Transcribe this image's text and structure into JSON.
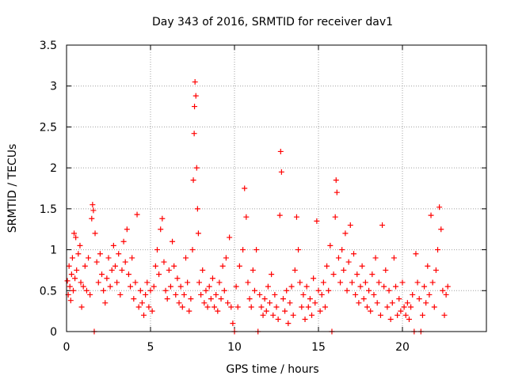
{
  "chart_data": {
    "type": "scatter",
    "title": "Day 343 of 2016, SRMTID for receiver dav1",
    "xlabel": "GPS time / hours",
    "ylabel": "SRMTID / TECUs",
    "xlim": [
      0,
      25
    ],
    "ylim": [
      0,
      3.5
    ],
    "xticks": [
      0,
      5,
      10,
      15,
      20
    ],
    "yticks": [
      0,
      0.5,
      1,
      1.5,
      2,
      2.5,
      3,
      3.5
    ],
    "ytick_labels": [
      "0",
      "0.5",
      "1",
      "1.5",
      "2",
      "2.5",
      "3",
      "3.5"
    ],
    "xtick_labels": [
      "0",
      "5",
      "10",
      "15",
      "20"
    ],
    "grid": true,
    "marker": "plus",
    "series": [
      {
        "name": "SRMTID",
        "color": "#ff0000",
        "points": [
          [
            0.05,
            0.62
          ],
          [
            0.1,
            0.45
          ],
          [
            0.15,
            0.8
          ],
          [
            0.2,
            0.55
          ],
          [
            0.25,
            0.38
          ],
          [
            0.3,
            0.7
          ],
          [
            0.35,
            0.9
          ],
          [
            0.4,
            0.5
          ],
          [
            0.45,
            1.2
          ],
          [
            0.5,
            0.65
          ],
          [
            0.55,
            1.15
          ],
          [
            0.6,
            0.75
          ],
          [
            0.7,
            0.95
          ],
          [
            0.8,
            1.05
          ],
          [
            0.85,
            0.6
          ],
          [
            0.9,
            0.3
          ],
          [
            1.0,
            0.55
          ],
          [
            1.1,
            0.8
          ],
          [
            1.2,
            0.5
          ],
          [
            1.3,
            0.9
          ],
          [
            1.4,
            0.45
          ],
          [
            1.5,
            1.38
          ],
          [
            1.55,
            1.55
          ],
          [
            1.6,
            1.48
          ],
          [
            1.65,
            0.0
          ],
          [
            1.7,
            1.2
          ],
          [
            1.8,
            0.85
          ],
          [
            1.9,
            0.6
          ],
          [
            2.0,
            0.95
          ],
          [
            2.1,
            0.7
          ],
          [
            2.2,
            0.5
          ],
          [
            2.3,
            0.35
          ],
          [
            2.4,
            0.65
          ],
          [
            2.5,
            0.9
          ],
          [
            2.6,
            0.55
          ],
          [
            2.7,
            0.75
          ],
          [
            2.8,
            1.05
          ],
          [
            2.9,
            0.8
          ],
          [
            3.0,
            0.6
          ],
          [
            3.1,
            0.95
          ],
          [
            3.2,
            0.45
          ],
          [
            3.3,
            0.75
          ],
          [
            3.4,
            1.1
          ],
          [
            3.5,
            0.85
          ],
          [
            3.6,
            1.25
          ],
          [
            3.7,
            0.7
          ],
          [
            3.8,
            0.55
          ],
          [
            3.9,
            0.9
          ],
          [
            4.0,
            0.4
          ],
          [
            4.1,
            0.6
          ],
          [
            4.2,
            1.43
          ],
          [
            4.3,
            0.3
          ],
          [
            4.4,
            0.5
          ],
          [
            4.5,
            0.35
          ],
          [
            4.6,
            0.2
          ],
          [
            4.7,
            0.45
          ],
          [
            4.8,
            0.6
          ],
          [
            4.9,
            0.3
          ],
          [
            5.0,
            0.5
          ],
          [
            5.1,
            0.25
          ],
          [
            5.2,
            0.55
          ],
          [
            5.3,
            0.8
          ],
          [
            5.4,
            1.0
          ],
          [
            5.5,
            0.7
          ],
          [
            5.6,
            1.25
          ],
          [
            5.7,
            1.38
          ],
          [
            5.8,
            0.85
          ],
          [
            5.9,
            0.5
          ],
          [
            6.0,
            0.4
          ],
          [
            6.1,
            0.75
          ],
          [
            6.2,
            0.55
          ],
          [
            6.3,
            1.1
          ],
          [
            6.4,
            0.8
          ],
          [
            6.5,
            0.45
          ],
          [
            6.6,
            0.65
          ],
          [
            6.7,
            0.35
          ],
          [
            6.8,
            0.55
          ],
          [
            6.9,
            0.3
          ],
          [
            7.0,
            0.45
          ],
          [
            7.1,
            0.9
          ],
          [
            7.2,
            0.6
          ],
          [
            7.3,
            0.25
          ],
          [
            7.4,
            0.4
          ],
          [
            7.5,
            1.0
          ],
          [
            7.55,
            1.85
          ],
          [
            7.6,
            2.42
          ],
          [
            7.62,
            2.75
          ],
          [
            7.65,
            3.05
          ],
          [
            7.7,
            2.88
          ],
          [
            7.75,
            2.0
          ],
          [
            7.8,
            1.5
          ],
          [
            7.85,
            1.2
          ],
          [
            7.9,
            0.6
          ],
          [
            8.0,
            0.45
          ],
          [
            8.1,
            0.75
          ],
          [
            8.2,
            0.35
          ],
          [
            8.3,
            0.5
          ],
          [
            8.4,
            0.3
          ],
          [
            8.5,
            0.55
          ],
          [
            8.6,
            0.4
          ],
          [
            8.7,
            0.65
          ],
          [
            8.8,
            0.3
          ],
          [
            8.9,
            0.45
          ],
          [
            9.0,
            0.25
          ],
          [
            9.1,
            0.6
          ],
          [
            9.2,
            0.4
          ],
          [
            9.3,
            0.8
          ],
          [
            9.4,
            0.5
          ],
          [
            9.5,
            0.9
          ],
          [
            9.6,
            0.35
          ],
          [
            9.7,
            1.15
          ],
          [
            9.8,
            0.3
          ],
          [
            9.9,
            0.1
          ],
          [
            10.0,
            0.0
          ],
          [
            10.1,
            0.55
          ],
          [
            10.2,
            0.3
          ],
          [
            10.3,
            0.8
          ],
          [
            10.5,
            1.0
          ],
          [
            10.6,
            1.75
          ],
          [
            10.7,
            1.4
          ],
          [
            10.8,
            0.6
          ],
          [
            10.9,
            0.4
          ],
          [
            11.0,
            0.3
          ],
          [
            11.1,
            0.75
          ],
          [
            11.2,
            0.5
          ],
          [
            11.3,
            1.0
          ],
          [
            11.4,
            0.0
          ],
          [
            11.5,
            0.45
          ],
          [
            11.6,
            0.3
          ],
          [
            11.7,
            0.2
          ],
          [
            11.8,
            0.4
          ],
          [
            11.9,
            0.25
          ],
          [
            12.0,
            0.55
          ],
          [
            12.1,
            0.35
          ],
          [
            12.2,
            0.7
          ],
          [
            12.3,
            0.2
          ],
          [
            12.4,
            0.45
          ],
          [
            12.5,
            0.3
          ],
          [
            12.6,
            0.15
          ],
          [
            12.7,
            1.42
          ],
          [
            12.75,
            2.2
          ],
          [
            12.8,
            1.95
          ],
          [
            12.9,
            0.4
          ],
          [
            13.0,
            0.25
          ],
          [
            13.1,
            0.5
          ],
          [
            13.2,
            0.1
          ],
          [
            13.3,
            0.35
          ],
          [
            13.4,
            0.55
          ],
          [
            13.5,
            0.2
          ],
          [
            13.6,
            0.75
          ],
          [
            13.7,
            1.4
          ],
          [
            13.8,
            1.0
          ],
          [
            13.9,
            0.6
          ],
          [
            14.0,
            0.3
          ],
          [
            14.1,
            0.45
          ],
          [
            14.2,
            0.15
          ],
          [
            14.3,
            0.55
          ],
          [
            14.4,
            0.3
          ],
          [
            14.5,
            0.4
          ],
          [
            14.6,
            0.2
          ],
          [
            14.7,
            0.65
          ],
          [
            14.8,
            0.35
          ],
          [
            14.9,
            1.35
          ],
          [
            15.0,
            0.5
          ],
          [
            15.1,
            0.25
          ],
          [
            15.2,
            0.45
          ],
          [
            15.3,
            0.6
          ],
          [
            15.4,
            0.3
          ],
          [
            15.5,
            0.8
          ],
          [
            15.6,
            0.5
          ],
          [
            15.7,
            1.05
          ],
          [
            15.8,
            0.0
          ],
          [
            15.9,
            0.7
          ],
          [
            16.0,
            1.4
          ],
          [
            16.05,
            1.85
          ],
          [
            16.1,
            1.7
          ],
          [
            16.2,
            0.9
          ],
          [
            16.3,
            0.6
          ],
          [
            16.4,
            1.0
          ],
          [
            16.5,
            0.75
          ],
          [
            16.6,
            1.2
          ],
          [
            16.7,
            0.5
          ],
          [
            16.8,
            0.85
          ],
          [
            16.9,
            1.3
          ],
          [
            17.0,
            0.6
          ],
          [
            17.1,
            0.95
          ],
          [
            17.2,
            0.45
          ],
          [
            17.3,
            0.7
          ],
          [
            17.4,
            0.35
          ],
          [
            17.5,
            0.55
          ],
          [
            17.6,
            0.8
          ],
          [
            17.7,
            0.4
          ],
          [
            17.8,
            0.6
          ],
          [
            17.9,
            0.3
          ],
          [
            18.0,
            0.5
          ],
          [
            18.1,
            0.25
          ],
          [
            18.2,
            0.7
          ],
          [
            18.3,
            0.45
          ],
          [
            18.4,
            0.9
          ],
          [
            18.5,
            0.35
          ],
          [
            18.6,
            0.6
          ],
          [
            18.7,
            0.2
          ],
          [
            18.8,
            1.3
          ],
          [
            18.9,
            0.55
          ],
          [
            19.0,
            0.75
          ],
          [
            19.1,
            0.3
          ],
          [
            19.2,
            0.5
          ],
          [
            19.3,
            0.15
          ],
          [
            19.4,
            0.35
          ],
          [
            19.5,
            0.9
          ],
          [
            19.6,
            0.55
          ],
          [
            19.7,
            0.2
          ],
          [
            19.8,
            0.4
          ],
          [
            19.9,
            0.25
          ],
          [
            20.0,
            0.6
          ],
          [
            20.1,
            0.3
          ],
          [
            20.2,
            0.2
          ],
          [
            20.3,
            0.35
          ],
          [
            20.4,
            0.15
          ],
          [
            20.5,
            0.3
          ],
          [
            20.6,
            0.45
          ],
          [
            20.7,
            0.0
          ],
          [
            20.8,
            0.95
          ],
          [
            20.9,
            0.6
          ],
          [
            21.0,
            0.4
          ],
          [
            21.1,
            0.0
          ],
          [
            21.2,
            0.2
          ],
          [
            21.3,
            0.55
          ],
          [
            21.4,
            0.35
          ],
          [
            21.5,
            0.8
          ],
          [
            21.6,
            0.45
          ],
          [
            21.7,
            1.42
          ],
          [
            21.8,
            0.6
          ],
          [
            21.9,
            0.3
          ],
          [
            22.0,
            0.75
          ],
          [
            22.1,
            1.0
          ],
          [
            22.2,
            1.52
          ],
          [
            22.3,
            1.25
          ],
          [
            22.4,
            0.5
          ],
          [
            22.5,
            0.2
          ],
          [
            22.6,
            0.45
          ],
          [
            22.7,
            0.55
          ]
        ]
      }
    ]
  }
}
